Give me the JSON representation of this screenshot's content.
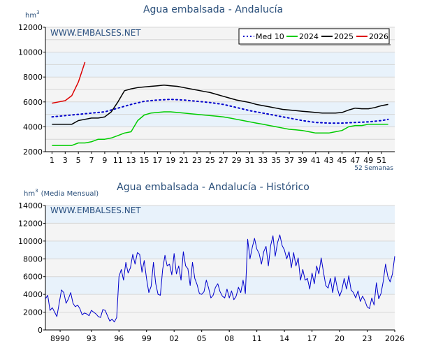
{
  "colors": {
    "band": "#e8f2fb",
    "plot_bg": "#f4f4f4",
    "grid": "#d6d6d6",
    "title": "#2a4f7a",
    "med10": "#0000cc",
    "y2024": "#00cc00",
    "y2025": "#000000",
    "y2026": "#dd0000",
    "history": "#0000cc"
  },
  "chart_data": [
    {
      "type": "line",
      "title": "Agua embalsada - Andalucía",
      "unit_label": "hm",
      "unit_sup": "3",
      "watermark": "WWW.EMBALSES.NET",
      "xlabel": "52 Semanas",
      "x_ticks": [
        "1",
        "3",
        "5",
        "7",
        "9",
        "11",
        "13",
        "15",
        "17",
        "19",
        "21",
        "23",
        "25",
        "27",
        "29",
        "31",
        "33",
        "35",
        "37",
        "39",
        "41",
        "43",
        "45",
        "47",
        "49",
        "51"
      ],
      "y_ticks": [
        "12000",
        "10000",
        "8000",
        "6000",
        "4000",
        "2000"
      ],
      "ylim": [
        2000,
        12000
      ],
      "xlim": [
        0,
        53
      ],
      "legend": [
        "Med 10",
        "2024",
        "2025",
        "2026"
      ],
      "series": [
        {
          "name": "Med 10",
          "style": "dotted",
          "x": [
            1,
            3,
            5,
            7,
            9,
            11,
            13,
            15,
            17,
            19,
            21,
            23,
            25,
            27,
            29,
            31,
            33,
            35,
            37,
            39,
            41,
            43,
            45,
            47,
            49,
            51,
            52
          ],
          "values": [
            4800,
            4900,
            5000,
            5100,
            5200,
            5500,
            5800,
            6050,
            6150,
            6200,
            6150,
            6050,
            5950,
            5800,
            5550,
            5300,
            5100,
            4900,
            4700,
            4500,
            4350,
            4300,
            4300,
            4350,
            4400,
            4500,
            4600
          ]
        },
        {
          "name": "2024",
          "style": "solid",
          "x": [
            1,
            2,
            3,
            4,
            5,
            6,
            7,
            8,
            9,
            10,
            11,
            12,
            13,
            14,
            15,
            16,
            17,
            18,
            19,
            20,
            21,
            22,
            23,
            24,
            25,
            26,
            27,
            28,
            29,
            30,
            31,
            32,
            33,
            34,
            35,
            36,
            37,
            38,
            39,
            40,
            41,
            42,
            43,
            44,
            45,
            46,
            47,
            48,
            49,
            50,
            51,
            52
          ],
          "values": [
            2500,
            2500,
            2500,
            2500,
            2700,
            2700,
            2800,
            3000,
            3000,
            3100,
            3300,
            3500,
            3600,
            4500,
            4950,
            5100,
            5150,
            5200,
            5200,
            5150,
            5100,
            5050,
            5000,
            4950,
            4900,
            4850,
            4800,
            4700,
            4600,
            4500,
            4400,
            4300,
            4200,
            4100,
            4000,
            3900,
            3800,
            3750,
            3700,
            3600,
            3500,
            3500,
            3500,
            3600,
            3700,
            4000,
            4100,
            4100,
            4200,
            4200,
            4200,
            4200
          ]
        },
        {
          "name": "2025",
          "style": "solid",
          "x": [
            1,
            2,
            3,
            4,
            5,
            6,
            7,
            8,
            9,
            10,
            11,
            12,
            13,
            14,
            15,
            16,
            17,
            18,
            19,
            20,
            21,
            22,
            23,
            24,
            25,
            26,
            27,
            28,
            29,
            30,
            31,
            32,
            33,
            34,
            35,
            36,
            37,
            38,
            39,
            40,
            41,
            42,
            43,
            44,
            45,
            46,
            47,
            48,
            49,
            50,
            51,
            52
          ],
          "values": [
            4200,
            4200,
            4200,
            4200,
            4500,
            4600,
            4700,
            4700,
            4800,
            5200,
            6000,
            6900,
            7050,
            7150,
            7200,
            7250,
            7300,
            7350,
            7300,
            7250,
            7150,
            7050,
            6950,
            6850,
            6750,
            6600,
            6450,
            6300,
            6150,
            6050,
            5950,
            5800,
            5700,
            5600,
            5500,
            5400,
            5350,
            5300,
            5250,
            5200,
            5150,
            5100,
            5100,
            5100,
            5150,
            5350,
            5500,
            5450,
            5450,
            5550,
            5700,
            5800
          ]
        },
        {
          "name": "2026",
          "style": "solid",
          "x": [
            1,
            2,
            3,
            4,
            5,
            6
          ],
          "values": [
            5900,
            6000,
            6100,
            6500,
            7600,
            9200
          ]
        }
      ]
    },
    {
      "type": "line",
      "title": "Agua embalsada - Andalucía - Histórico",
      "unit_label": "hm",
      "unit_sup": "3",
      "unit_note": "(Media Mensual)",
      "watermark": "WWW.EMBALSES.NET",
      "x_ticks": [
        "8990",
        "93",
        "96",
        "99",
        "02",
        "05",
        "08",
        "11",
        "14",
        "17",
        "20",
        "23",
        "2026"
      ],
      "y_ticks": [
        "14000",
        "12000",
        "10000",
        "8000",
        "6000",
        "4000",
        "2000",
        "0"
      ],
      "ylim": [
        0,
        14000
      ],
      "xlim": [
        1988.0,
        2026.0
      ],
      "series": [
        {
          "name": "Histórico",
          "x": [
            1988.0,
            1988.25,
            1988.5,
            1988.75,
            1989.0,
            1989.25,
            1989.5,
            1989.75,
            1990.0,
            1990.25,
            1990.5,
            1990.75,
            1991.0,
            1991.25,
            1991.5,
            1991.75,
            1992.0,
            1992.25,
            1992.5,
            1992.75,
            1993.0,
            1993.25,
            1993.5,
            1993.75,
            1994.0,
            1994.25,
            1994.5,
            1994.75,
            1995.0,
            1995.25,
            1995.5,
            1995.75,
            1996.0,
            1996.25,
            1996.5,
            1996.75,
            1997.0,
            1997.25,
            1997.5,
            1997.75,
            1998.0,
            1998.25,
            1998.5,
            1998.75,
            1999.0,
            1999.25,
            1999.5,
            1999.75,
            2000.0,
            2000.25,
            2000.5,
            2000.75,
            2001.0,
            2001.25,
            2001.5,
            2001.75,
            2002.0,
            2002.25,
            2002.5,
            2002.75,
            2003.0,
            2003.25,
            2003.5,
            2003.75,
            2004.0,
            2004.25,
            2004.5,
            2004.75,
            2005.0,
            2005.25,
            2005.5,
            2005.75,
            2006.0,
            2006.25,
            2006.5,
            2006.75,
            2007.0,
            2007.25,
            2007.5,
            2007.75,
            2008.0,
            2008.25,
            2008.5,
            2008.75,
            2009.0,
            2009.25,
            2009.5,
            2009.75,
            2010.0,
            2010.25,
            2010.5,
            2010.75,
            2011.0,
            2011.25,
            2011.5,
            2011.75,
            2012.0,
            2012.25,
            2012.5,
            2012.75,
            2013.0,
            2013.25,
            2013.5,
            2013.75,
            2014.0,
            2014.25,
            2014.5,
            2014.75,
            2015.0,
            2015.25,
            2015.5,
            2015.75,
            2016.0,
            2016.25,
            2016.5,
            2016.75,
            2017.0,
            2017.25,
            2017.5,
            2017.75,
            2018.0,
            2018.25,
            2018.5,
            2018.75,
            2019.0,
            2019.25,
            2019.5,
            2019.75,
            2020.0,
            2020.25,
            2020.5,
            2020.75,
            2021.0,
            2021.25,
            2021.5,
            2021.75,
            2022.0,
            2022.25,
            2022.5,
            2022.75,
            2023.0,
            2023.25,
            2023.5,
            2023.75,
            2024.0,
            2024.25,
            2024.5,
            2024.75,
            2025.0,
            2025.25,
            2025.5,
            2025.75,
            2026.0
          ],
          "values": [
            3500,
            3900,
            2200,
            2500,
            2000,
            1500,
            3000,
            4500,
            4200,
            3000,
            3500,
            4200,
            3000,
            2600,
            2800,
            2400,
            1700,
            1900,
            1800,
            1600,
            2200,
            2000,
            1800,
            1500,
            1400,
            2300,
            2200,
            1600,
            1000,
            1200,
            900,
            1400,
            6000,
            6800,
            5600,
            7600,
            6400,
            7000,
            8500,
            7400,
            8700,
            8500,
            6500,
            7800,
            5800,
            4200,
            4900,
            7600,
            5200,
            4000,
            3900,
            6800,
            8400,
            7200,
            7400,
            6200,
            8600,
            6300,
            7200,
            5600,
            8800,
            7200,
            6900,
            5000,
            7600,
            5800,
            5100,
            4100,
            4000,
            4300,
            5600,
            4700,
            3600,
            3900,
            4800,
            5200,
            4300,
            3800,
            3600,
            4600,
            3600,
            4400,
            3400,
            3800,
            4800,
            4200,
            5600,
            4100,
            10200,
            8000,
            9300,
            10300,
            9100,
            8600,
            7400,
            8800,
            9400,
            7200,
            9500,
            10600,
            8300,
            9800,
            10700,
            9500,
            9000,
            8000,
            8800,
            7000,
            8700,
            7200,
            8100,
            5600,
            6800,
            5600,
            5800,
            4600,
            6400,
            5200,
            7200,
            6300,
            8100,
            6500,
            5000,
            4700,
            5800,
            4200,
            6000,
            4700,
            3800,
            4500,
            5800,
            4600,
            6100,
            4500,
            4200,
            3600,
            4400,
            3200,
            3800,
            3300,
            2600,
            2400,
            3600,
            2800,
            5300,
            3500,
            4100,
            5500,
            7400,
            6000,
            5400,
            6300,
            8300
          ]
        }
      ]
    }
  ]
}
